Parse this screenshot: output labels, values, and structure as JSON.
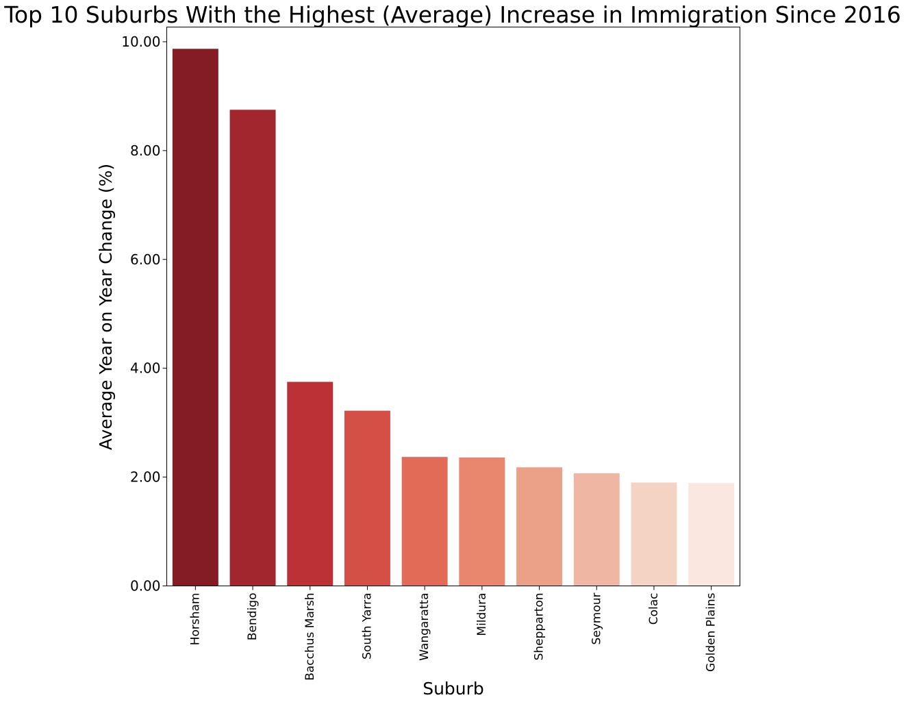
{
  "chart_data": {
    "type": "bar",
    "title": "Top 10 Suburbs With the Highest (Average) Increase in Immigration Since 2016",
    "xlabel": "Suburb",
    "ylabel": "Average Year on Year Change (%)",
    "ylim": [
      0,
      10.27
    ],
    "yticks": [
      "0.00",
      "2.00",
      "4.00",
      "6.00",
      "8.00",
      "10.00"
    ],
    "grid": false,
    "categories": [
      "Horsham",
      "Bendigo",
      "Bacchus Marsh",
      "South Yarra",
      "Wangaratta",
      "Mildura",
      "Shepparton",
      "Seymour",
      "Colac",
      "Golden Plains"
    ],
    "values": [
      9.87,
      8.75,
      3.75,
      3.22,
      2.37,
      2.36,
      2.18,
      2.07,
      1.9,
      1.89
    ],
    "colors": [
      "#841c24",
      "#a1262d",
      "#bb3135",
      "#d44f45",
      "#e26b58",
      "#e9866e",
      "#eba088",
      "#efb7a3",
      "#f4d3c4",
      "#fae7df"
    ]
  }
}
